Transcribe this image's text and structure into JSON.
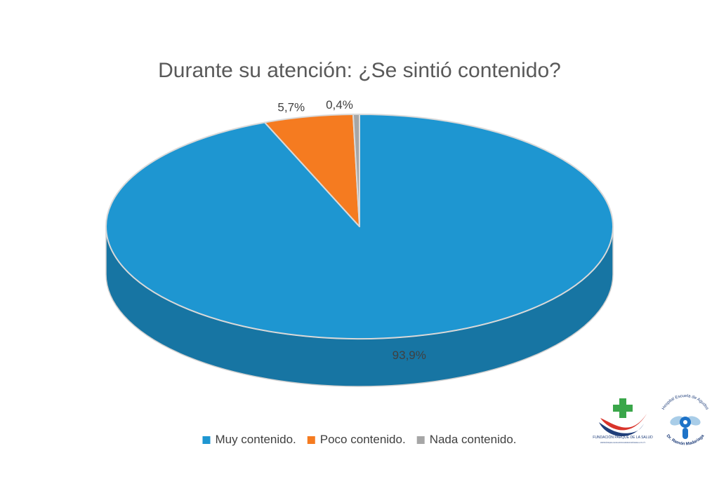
{
  "chart_data": {
    "type": "pie",
    "title": "Durante su atención: ¿Se sintió contenido?",
    "categories": [
      "Muy contenido.",
      "Poco contenido.",
      "Nada contenido."
    ],
    "values": [
      93.9,
      5.7,
      0.4
    ],
    "value_labels": [
      "93,9%",
      "5,7%",
      "0,4%"
    ],
    "colors": [
      "#1e96d1",
      "#f57b20",
      "#a6a6a6"
    ],
    "legend_position": "bottom",
    "style": "3d"
  },
  "logos": {
    "left": {
      "name": "FUNDACIÓN PARQUE DE LA SALUD",
      "subtitle": "ADMINISTRACIÓN PARQUE DE LA SALUD DE LA PROVINCIA DE MISIONES DR. RAMÓN MADARIAGA - LEY XVII - Nº 70"
    },
    "right": {
      "top_text": "Hospital Escuela de Agudos",
      "bottom_text": "Dr. Ramón Madariaga"
    }
  }
}
